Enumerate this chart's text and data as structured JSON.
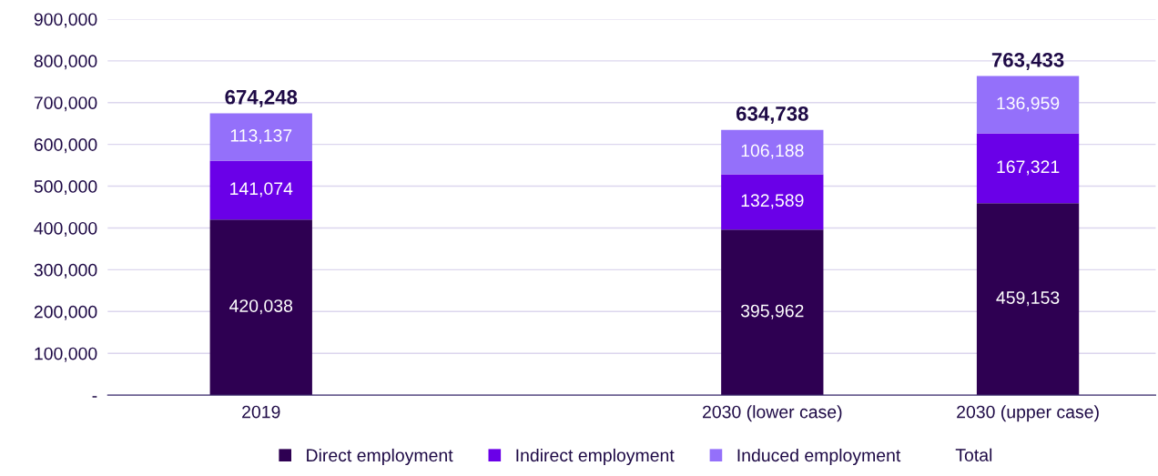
{
  "chart_data": {
    "type": "bar",
    "stacked": true,
    "categories": [
      "2019",
      null,
      "2030 (lower case)",
      "2030 (upper case)"
    ],
    "series": [
      {
        "name": "Direct employment",
        "color": "#2e0052",
        "values": [
          420038,
          null,
          395962,
          459153
        ],
        "value_labels": [
          "420,038",
          null,
          "395,962",
          "459,153"
        ]
      },
      {
        "name": "Indirect employment",
        "color": "#6a00e8",
        "values": [
          141074,
          null,
          132589,
          167321
        ],
        "value_labels": [
          "141,074",
          null,
          "132,589",
          "167,321"
        ]
      },
      {
        "name": "Induced employment",
        "color": "#9470fa",
        "values": [
          113137,
          null,
          106188,
          136959
        ],
        "value_labels": [
          "113,137",
          null,
          "106,188",
          "136,959"
        ]
      }
    ],
    "totals": [
      "674,248",
      null,
      "634,738",
      "763,433"
    ],
    "annotations": [
      "Total"
    ],
    "ylim": [
      0,
      900000
    ],
    "yticks": [
      {
        "value": 0,
        "label": "-"
      },
      {
        "value": 100000,
        "label": "100,000"
      },
      {
        "value": 200000,
        "label": "200,000"
      },
      {
        "value": 300000,
        "label": "300,000"
      },
      {
        "value": 400000,
        "label": "400,000"
      },
      {
        "value": 500000,
        "label": "500,000"
      },
      {
        "value": 600000,
        "label": "600,000"
      },
      {
        "value": 700000,
        "label": "700,000"
      },
      {
        "value": 800000,
        "label": "800,000"
      },
      {
        "value": 900000,
        "label": "900,000"
      }
    ],
    "grid": "y",
    "legend": "bottom"
  }
}
